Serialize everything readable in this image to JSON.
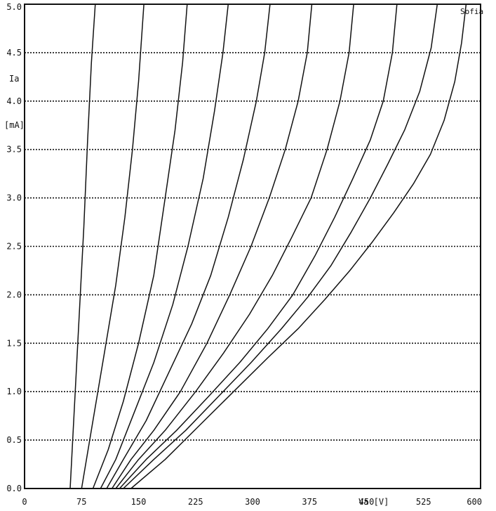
{
  "chart_data": {
    "type": "line",
    "title": "",
    "legend_label": "Sofia",
    "legend_position": "top-right",
    "ylabel_line1": "Ia",
    "ylabel_line2": "[mA]",
    "xlabel": "Va [V]",
    "xlim": [
      0,
      600
    ],
    "ylim": [
      0,
      5.0
    ],
    "grid": "horizontal-dotted",
    "x_ticks": [
      0,
      75,
      150,
      225,
      300,
      375,
      450,
      525,
      600
    ],
    "x_tick_labels": [
      "0",
      "75",
      "150",
      "225",
      "300",
      "375",
      "450",
      "525",
      "600"
    ],
    "y_ticks": [
      0.0,
      0.5,
      1.0,
      1.5,
      2.0,
      2.5,
      3.0,
      3.5,
      4.0,
      4.5,
      5.0
    ],
    "y_tick_labels": [
      "0.0",
      "0.5",
      "1.0",
      "1.5",
      "2.0",
      "2.5",
      "3.0",
      "3.5",
      "4.0",
      "4.5",
      "5.0"
    ],
    "series": [
      {
        "x": [
          60,
          66,
          72,
          78,
          83,
          88,
          93
        ],
        "y": [
          0.0,
          0.9,
          1.8,
          2.7,
          3.6,
          4.4,
          5.0
        ]
      },
      {
        "x": [
          75,
          90,
          105,
          120,
          132,
          142,
          150,
          157
        ],
        "y": [
          0.0,
          0.7,
          1.4,
          2.1,
          2.8,
          3.5,
          4.2,
          5.0
        ]
      },
      {
        "x": [
          90,
          110,
          130,
          150,
          170,
          185,
          198,
          208,
          214
        ],
        "y": [
          0.0,
          0.4,
          0.9,
          1.5,
          2.2,
          3.0,
          3.7,
          4.4,
          5.0
        ]
      },
      {
        "x": [
          100,
          120,
          145,
          170,
          195,
          215,
          235,
          250,
          261,
          268
        ],
        "y": [
          0.0,
          0.3,
          0.8,
          1.3,
          1.9,
          2.5,
          3.2,
          3.9,
          4.5,
          5.0
        ]
      },
      {
        "x": [
          108,
          130,
          160,
          190,
          220,
          245,
          268,
          288,
          305,
          316,
          323
        ],
        "y": [
          0.0,
          0.3,
          0.7,
          1.2,
          1.7,
          2.2,
          2.8,
          3.4,
          4.0,
          4.5,
          5.0
        ]
      },
      {
        "x": [
          115,
          140,
          170,
          205,
          240,
          270,
          298,
          322,
          343,
          360,
          372,
          378
        ],
        "y": [
          0.0,
          0.3,
          0.6,
          1.0,
          1.5,
          2.0,
          2.5,
          3.0,
          3.5,
          4.0,
          4.5,
          5.0
        ]
      },
      {
        "x": [
          120,
          150,
          185,
          225,
          262,
          296,
          326,
          352,
          377,
          398,
          415,
          427,
          433
        ],
        "y": [
          0.0,
          0.3,
          0.6,
          1.0,
          1.4,
          1.8,
          2.2,
          2.6,
          3.0,
          3.5,
          4.0,
          4.5,
          5.0
        ]
      },
      {
        "x": [
          125,
          160,
          200,
          242,
          283,
          320,
          353,
          382,
          408,
          432,
          455,
          472,
          484,
          490
        ],
        "y": [
          0.0,
          0.3,
          0.6,
          0.95,
          1.3,
          1.65,
          2.0,
          2.4,
          2.8,
          3.2,
          3.6,
          4.0,
          4.5,
          5.0
        ]
      },
      {
        "x": [
          130,
          170,
          212,
          255,
          298,
          338,
          373,
          403,
          430,
          455,
          478,
          500,
          520,
          535,
          543
        ],
        "y": [
          0.0,
          0.3,
          0.6,
          0.95,
          1.3,
          1.65,
          1.98,
          2.3,
          2.65,
          3.0,
          3.35,
          3.7,
          4.1,
          4.55,
          5.0
        ]
      },
      {
        "x": [
          140,
          185,
          230,
          275,
          320,
          360,
          395,
          428,
          458,
          486,
          512,
          534,
          552,
          566,
          575,
          581
        ],
        "y": [
          0.0,
          0.3,
          0.65,
          1.0,
          1.35,
          1.65,
          1.95,
          2.25,
          2.55,
          2.85,
          3.15,
          3.45,
          3.8,
          4.2,
          4.6,
          5.0
        ]
      }
    ]
  }
}
